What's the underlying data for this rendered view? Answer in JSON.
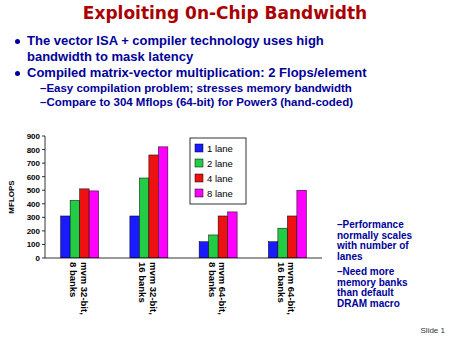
{
  "slide": {
    "title": "Exploiting 0n-Chip Bandwidth",
    "bullets": [
      {
        "lines": [
          "The vector ISA + compiler technology uses high",
          "bandwidth to mask latency"
        ],
        "sub": []
      },
      {
        "lines": [
          "Compiled matrix-vector multiplication: 2 Flops/element"
        ],
        "sub": [
          "–Easy compilation problem; stresses memory bandwidth",
          "–Compare to 304 Mflops (64-bit) for Power3 (hand-coded)"
        ]
      }
    ],
    "notes": [
      "–Performance normally scales with number of lanes",
      "–Need more memory banks than default DRAM macro"
    ],
    "footer": "Slide 1"
  },
  "chart_data": {
    "type": "bar",
    "y_label": "MFLOPS",
    "categories": [
      "mvm 32-bit, 8 banks",
      "mvm 32-bit, 16 banks",
      "mvm 64-bit, 8 banks",
      "mvm 64-bit, 16 banks"
    ],
    "series": [
      {
        "name": "1 lane",
        "color": "#1a1aff",
        "values": [
          310,
          310,
          120,
          120
        ]
      },
      {
        "name": "2 lane",
        "color": "#22cc44",
        "values": [
          425,
          590,
          170,
          220
        ]
      },
      {
        "name": "4 lane",
        "color": "#ee1111",
        "values": [
          510,
          760,
          310,
          310
        ]
      },
      {
        "name": "8 lane",
        "color": "#ff00ff",
        "values": [
          495,
          820,
          340,
          500
        ]
      }
    ],
    "ylim": [
      0,
      900
    ],
    "yticks": [
      0,
      100,
      200,
      300,
      400,
      500,
      600,
      700,
      800,
      900
    ],
    "grid": false,
    "legend": "top"
  }
}
